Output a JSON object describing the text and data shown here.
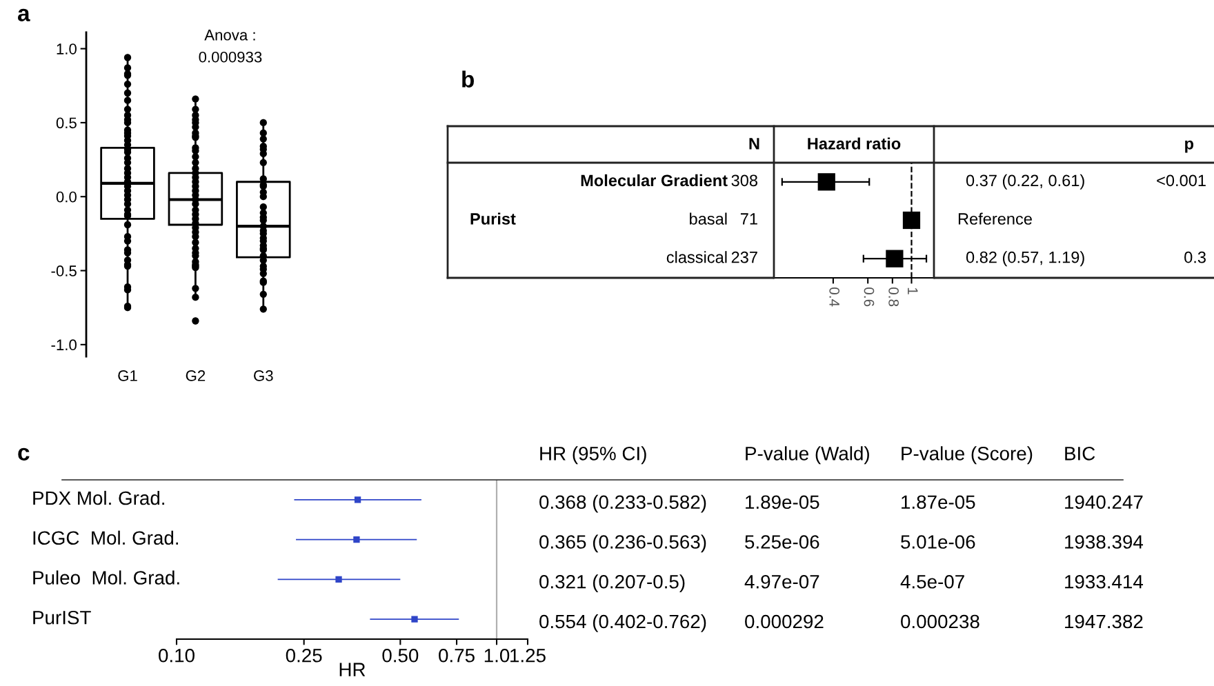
{
  "chart_data": [
    {
      "type": "box",
      "title": "a",
      "categories": [
        "G1",
        "G2",
        "G3"
      ],
      "boxes": [
        {
          "low": -0.75,
          "q1": -0.15,
          "median": 0.09,
          "q3": 0.33,
          "high": 0.93
        },
        {
          "low": -0.67,
          "q1": -0.19,
          "median": -0.02,
          "q3": 0.16,
          "high": 0.66
        },
        {
          "low": -0.76,
          "q1": -0.41,
          "median": -0.2,
          "q3": 0.1,
          "high": 0.48
        }
      ],
      "color": "#000000",
      "ylim": [
        -1.08,
        1.11
      ],
      "yticks": [
        {
          "value": 1,
          "label": "1.0"
        },
        {
          "value": 0.5,
          "label": "0.5"
        },
        {
          "value": 0,
          "label": "0.0"
        },
        {
          "value": -0.5,
          "label": "-0.5"
        },
        {
          "value": -1,
          "label": "-1.0"
        }
      ],
      "annotations": [
        "Anova :\n0.000933"
      ],
      "series": [
        {
          "type": "scatter",
          "color": "#000000",
          "marker": "circle",
          "x": [
            "G1",
            "G1",
            "G1",
            "G1",
            "G1",
            "G1",
            "G1",
            "G1",
            "G1",
            "G1",
            "G1",
            "G1",
            "G1",
            "G1",
            "G1",
            "G1",
            "G1",
            "G1",
            "G1",
            "G1",
            "G1",
            "G1",
            "G1",
            "G1",
            "G1",
            "G1",
            "G1",
            "G1",
            "G1",
            "G1",
            "G1",
            "G1",
            "G1",
            "G1",
            "G1",
            "G1",
            "G1",
            "G1",
            "G1",
            "G1",
            "G1",
            "G1",
            "G1",
            "G1",
            "G2",
            "G2",
            "G2",
            "G2",
            "G2",
            "G2",
            "G2",
            "G2",
            "G2",
            "G2",
            "G2",
            "G2",
            "G2",
            "G2",
            "G2",
            "G2",
            "G2",
            "G2",
            "G2",
            "G2",
            "G2",
            "G2",
            "G2",
            "G2",
            "G2",
            "G2",
            "G2",
            "G2",
            "G2",
            "G2",
            "G2",
            "G2",
            "G2",
            "G2",
            "G2",
            "G2",
            "G2",
            "G2",
            "G2",
            "G2",
            "G3",
            "G3",
            "G3",
            "G3",
            "G3",
            "G3",
            "G3",
            "G3",
            "G3",
            "G3",
            "G3",
            "G3",
            "G3",
            "G3",
            "G3",
            "G3",
            "G3",
            "G3",
            "G3",
            "G3",
            "G3",
            "G3",
            "G3",
            "G3",
            "G3",
            "G3",
            "G3",
            "G3",
            "G3",
            "G3",
            "G3",
            "G3",
            "G3"
          ],
          "values": [
            0.94,
            0.87,
            0.83,
            0.82,
            0.76,
            0.7,
            0.65,
            0.59,
            0.55,
            0.52,
            0.5,
            0.45,
            0.43,
            0.41,
            0.38,
            0.35,
            0.32,
            0.3,
            0.26,
            0.23,
            0.19,
            0.16,
            0.13,
            0.1,
            0.07,
            0.04,
            0.01,
            -0.02,
            -0.05,
            -0.09,
            -0.12,
            -0.13,
            -0.19,
            -0.27,
            -0.3,
            -0.36,
            -0.38,
            -0.43,
            -0.46,
            -0.47,
            -0.61,
            -0.63,
            -0.74,
            -0.75,
            0.66,
            0.59,
            0.55,
            0.52,
            0.5,
            0.47,
            0.43,
            0.41,
            0.4,
            0.33,
            0.31,
            0.27,
            0.23,
            0.19,
            0.16,
            0.13,
            0.1,
            0.07,
            0.04,
            0.01,
            -0.02,
            -0.05,
            -0.09,
            -0.12,
            -0.15,
            -0.18,
            -0.21,
            -0.24,
            -0.27,
            -0.31,
            -0.35,
            -0.38,
            -0.4,
            -0.44,
            -0.46,
            -0.47,
            -0.48,
            -0.62,
            -0.68,
            -0.84,
            0.5,
            0.43,
            0.39,
            0.34,
            0.32,
            0.29,
            0.23,
            0.12,
            0.08,
            0.07,
            0.03,
            0.0,
            -0.07,
            -0.11,
            -0.14,
            -0.16,
            -0.2,
            -0.23,
            -0.25,
            -0.28,
            -0.3,
            -0.33,
            -0.35,
            -0.36,
            -0.4,
            -0.43,
            -0.47,
            -0.49,
            -0.52,
            -0.57,
            -0.58,
            -0.66,
            -0.76
          ]
        }
      ]
    },
    {
      "type": "scatter",
      "title": "b",
      "orientation": "horizontal",
      "log": "x",
      "marker": "square",
      "color": "#000000",
      "categories": [
        "Molecular Gradient",
        "basal",
        "classical"
      ],
      "values": [
        0.37,
        1,
        0.82
      ],
      "errors": [
        [
          0.22,
          0.61
        ],
        null,
        [
          0.57,
          1.19
        ]
      ],
      "xlim": [
        0.2,
        1.3
      ],
      "xticks": [
        0.4,
        0.6,
        0.8,
        1
      ],
      "ref_lines": [
        {
          "axis": "x",
          "value": 1,
          "color": "#000000",
          "line_style": "dashed"
        }
      ],
      "annotations": [
        "N",
        "Hazard ratio",
        "p",
        "Purist",
        "308",
        "71",
        "237",
        "0.37 (0.22, 0.61)",
        "Reference",
        "0.82 (0.57, 1.19)",
        "<0.001",
        "0.3"
      ]
    },
    {
      "type": "scatter",
      "title": "c",
      "orientation": "horizontal",
      "log": "x",
      "marker": "square",
      "color": "#2f45c8",
      "categories": [
        "PDX Mol. Grad.",
        "ICGC  Mol. Grad.",
        "Puleo  Mol. Grad.",
        "PurIST"
      ],
      "values": [
        0.368,
        0.365,
        0.321,
        0.554
      ],
      "errors": [
        [
          0.233,
          0.582
        ],
        [
          0.236,
          0.563
        ],
        [
          0.207,
          0.5
        ],
        [
          0.402,
          0.762
        ]
      ],
      "xlabel": "HR",
      "xlim": [
        0.1,
        1.25
      ],
      "xticks": [
        {
          "value": 0.1,
          "label": "0.10"
        },
        {
          "value": 0.25,
          "label": "0.25"
        },
        {
          "value": 0.5,
          "label": "0.50"
        },
        {
          "value": 0.75,
          "label": "0.75"
        },
        {
          "value": 1,
          "label": "1.0"
        },
        {
          "value": 1.25,
          "label": "1.25"
        }
      ],
      "ref_lines": [
        {
          "axis": "x",
          "value": 1,
          "color": "#b0b0b0",
          "line_style": "solid"
        }
      ],
      "annotations": [
        "HR (95% CI)",
        "P-value (Wald)",
        "P-value (Score)",
        "BIC",
        "0.368 (0.233-0.582)",
        "1.89e-05",
        "1.87e-05",
        "1940.247",
        "0.365 (0.236-0.563)",
        "5.25e-06",
        "5.01e-06",
        "1938.394",
        "0.321 (0.207-0.5)",
        "4.97e-07",
        "4.5e-07",
        "1933.414",
        "0.554 (0.402-0.762)",
        "0.000292",
        "0.000238",
        "1947.382"
      ]
    }
  ]
}
